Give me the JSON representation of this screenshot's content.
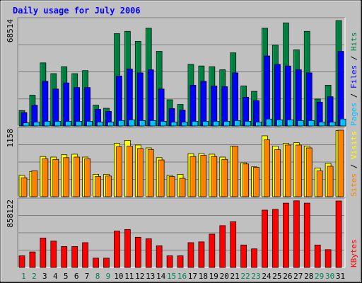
{
  "chart_data": {
    "type": "bar",
    "title": "Daily usage for July 2006",
    "categories": [
      "1",
      "2",
      "3",
      "4",
      "5",
      "6",
      "7",
      "8",
      "9",
      "10",
      "11",
      "12",
      "13",
      "14",
      "15",
      "16",
      "17",
      "18",
      "19",
      "20",
      "21",
      "22",
      "23",
      "24",
      "25",
      "26",
      "27",
      "28",
      "29",
      "30",
      "31"
    ],
    "weekend_days": [
      "1",
      "2",
      "8",
      "9",
      "15",
      "16",
      "22",
      "23",
      "29",
      "30"
    ],
    "panels": [
      {
        "id": "hits_files_pages",
        "max_label": "68514",
        "ylim": [
          0,
          68514
        ],
        "legend": [
          {
            "label": "Hits",
            "color": "#008040"
          },
          {
            "label": "Files",
            "color": "#0000ff"
          },
          {
            "label": "Pages",
            "color": "#00c0ff"
          }
        ],
        "legend_separator": " / ",
        "series": [
          {
            "name": "Hits",
            "color": "#008040",
            "values": [
              10000,
              20000,
              41000,
              34000,
              38500,
              34000,
              36000,
              13500,
              11500,
              60000,
              61500,
              55000,
              63500,
              48500,
              17000,
              14000,
              40000,
              39000,
              38500,
              36500,
              47500,
              26000,
              22500,
              63500,
              52500,
              67000,
              49500,
              61500,
              17500,
              26500,
              68500
            ]
          },
          {
            "name": "Files",
            "color": "#0000ff",
            "values": [
              8700,
              13500,
              29000,
              24000,
              28000,
              25000,
              25000,
              10800,
              9500,
              32500,
              37000,
              34500,
              36500,
              24000,
              11300,
              10300,
              26500,
              29000,
              26000,
              25500,
              34500,
              18700,
              16500,
              45500,
              40000,
              39000,
              36500,
              34500,
              15500,
              19000,
              48500
            ]
          },
          {
            "name": "Pages",
            "color": "#00c0ff",
            "values": [
              2000,
              2500,
              3000,
              3000,
              3000,
              3000,
              3000,
              2500,
              2500,
              3500,
              4000,
              3500,
              3500,
              3000,
              2500,
              2500,
              3000,
              3000,
              3000,
              3000,
              3500,
              3000,
              2500,
              4500,
              4000,
              4000,
              3500,
              3500,
              2500,
              2500,
              4500
            ]
          }
        ]
      },
      {
        "id": "visits_sites",
        "max_label": "1158",
        "ylim": [
          0,
          1158
        ],
        "legend": [
          {
            "label": "Visits",
            "color": "#ffff00"
          },
          {
            "label": "Sites",
            "color": "#ff8000"
          }
        ],
        "legend_separator": " / ",
        "series": [
          {
            "name": "Visits",
            "color": "#ffff00",
            "values": [
              370,
              440,
              700,
              690,
              730,
              740,
              690,
              390,
              390,
              930,
              980,
              900,
              850,
              680,
              370,
              390,
              750,
              750,
              740,
              690,
              880,
              590,
              520,
              1060,
              880,
              930,
              940,
              880,
              500,
              580,
              1150
            ]
          },
          {
            "name": "Sites",
            "color": "#ff8000",
            "values": [
              330,
              450,
              660,
              650,
              680,
              690,
              660,
              350,
              360,
              870,
              880,
              840,
              820,
              640,
              350,
              320,
              700,
              720,
              700,
              650,
              880,
              570,
              510,
              990,
              820,
              900,
              900,
              850,
              450,
              530,
              1158
            ]
          }
        ]
      },
      {
        "id": "kbytes",
        "max_label": "858122",
        "ylim": [
          0,
          858122
        ],
        "legend": [
          {
            "label": "KBytes",
            "color": "#ff0000"
          }
        ],
        "legend_separator": "",
        "series": [
          {
            "name": "KBytes",
            "color": "#ff0000",
            "values": [
              150000,
              200000,
              380000,
              340000,
              270000,
              270000,
              320000,
              120000,
              120000,
              470000,
              490000,
              390000,
              370000,
              280000,
              150000,
              150000,
              320000,
              330000,
              430000,
              540000,
              590000,
              290000,
              240000,
              740000,
              750000,
              830000,
              860000,
              830000,
              290000,
              230000,
              858000
            ]
          }
        ]
      }
    ]
  }
}
